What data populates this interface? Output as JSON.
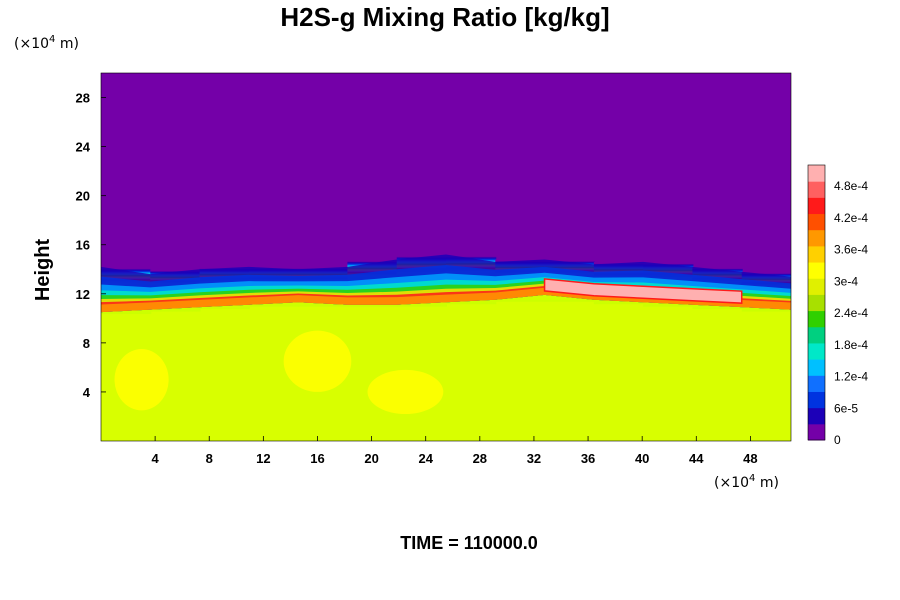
{
  "chart_data": {
    "type": "heatmap",
    "title": "H2S-g Mixing Ratio [kg/kg]",
    "ylabel": "Height",
    "x_unit": {
      "prefix": "(×10",
      "exp": "4",
      "suffix": " m)"
    },
    "y_unit": {
      "prefix": "(×10",
      "exp": "4",
      "suffix": " m)"
    },
    "xlim": [
      0,
      51
    ],
    "ylim": [
      0,
      30
    ],
    "x_ticks": [
      "4",
      "8",
      "12",
      "16",
      "20",
      "24",
      "28",
      "32",
      "36",
      "40",
      "44",
      "48"
    ],
    "y_ticks": [
      "4",
      "8",
      "12",
      "16",
      "20",
      "24",
      "28"
    ],
    "colorbar": {
      "range": [
        0,
        0.00052
      ],
      "tick_labels": [
        "0",
        "6e-5",
        "1.2e-4",
        "1.8e-4",
        "2.4e-4",
        "3e-4",
        "3.6e-4",
        "4.2e-4",
        "4.8e-4"
      ],
      "colors": [
        "#7400a8",
        "#1c00b8",
        "#0033e0",
        "#1070ff",
        "#00c0ff",
        "#00e8c8",
        "#00d080",
        "#30d000",
        "#a8e000",
        "#e0f000",
        "#ffff00",
        "#ffd000",
        "#ff9800",
        "#ff5000",
        "#ff1a1a",
        "#ff6060",
        "#ffb0b0"
      ]
    },
    "layers": {
      "background_upper_value": 0.0,
      "lower_region_value": 0.00033,
      "plume_top_height": [
        14.2,
        13.6,
        14.0,
        14.2,
        14.0,
        14.2,
        14.8,
        15.2,
        14.6,
        14.8,
        14.4,
        14.6,
        14.2,
        13.8,
        13.4
      ],
      "peak_band_height": [
        11.0,
        11.2,
        11.4,
        11.6,
        11.8,
        11.6,
        11.6,
        11.8,
        12.0,
        12.4,
        12.0,
        11.8,
        11.6,
        11.4,
        11.2
      ],
      "pink_patch_x": [
        32,
        47
      ],
      "yellow_blobs": [
        {
          "x": 22.5,
          "y": 4.0,
          "rx": 2.8,
          "ry": 1.8
        },
        {
          "x": 16.0,
          "y": 6.5,
          "rx": 2.5,
          "ry": 2.5
        },
        {
          "x": 3.0,
          "y": 5.0,
          "rx": 2.0,
          "ry": 2.5
        }
      ]
    }
  },
  "footer": {
    "time_label": "TIME = 110000.0"
  }
}
